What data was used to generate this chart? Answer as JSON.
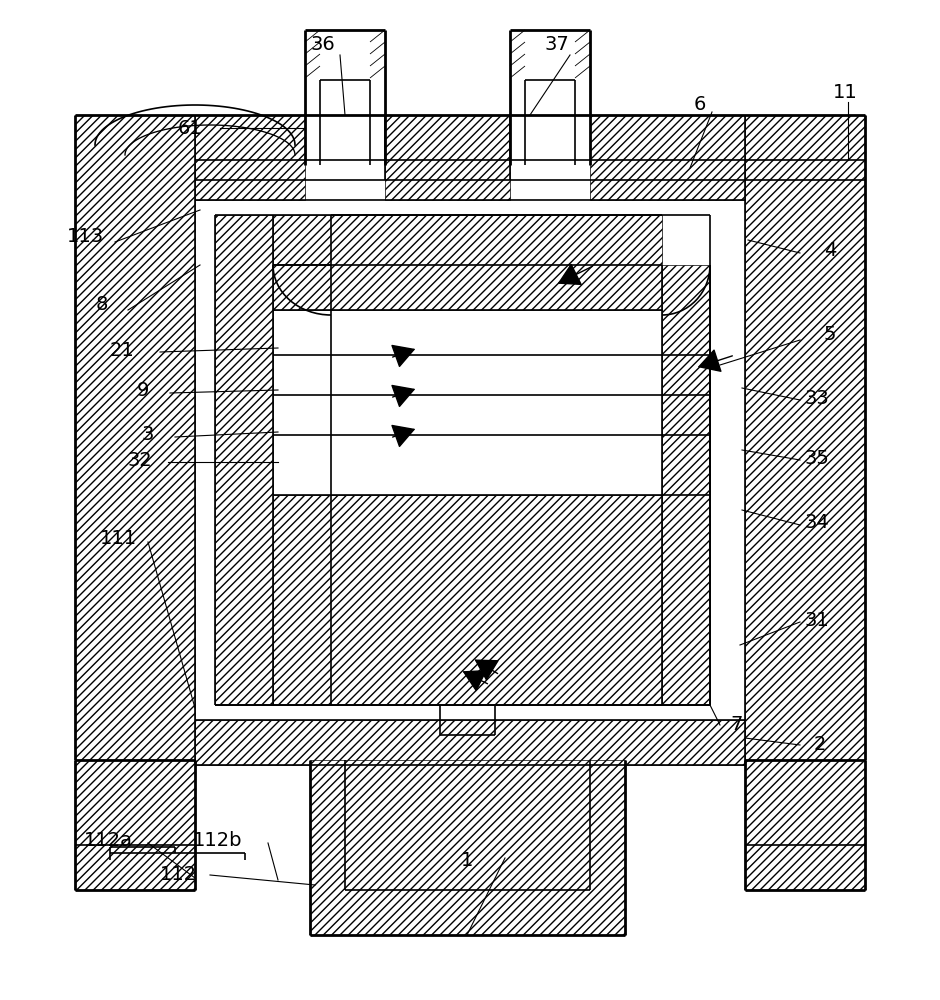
{
  "bg_color": "#ffffff",
  "lc": "#000000",
  "lw": 1.2,
  "lw2": 2.0,
  "figsize": [
    9.4,
    10.0
  ],
  "dpi": 100,
  "label_fontsize": 14
}
